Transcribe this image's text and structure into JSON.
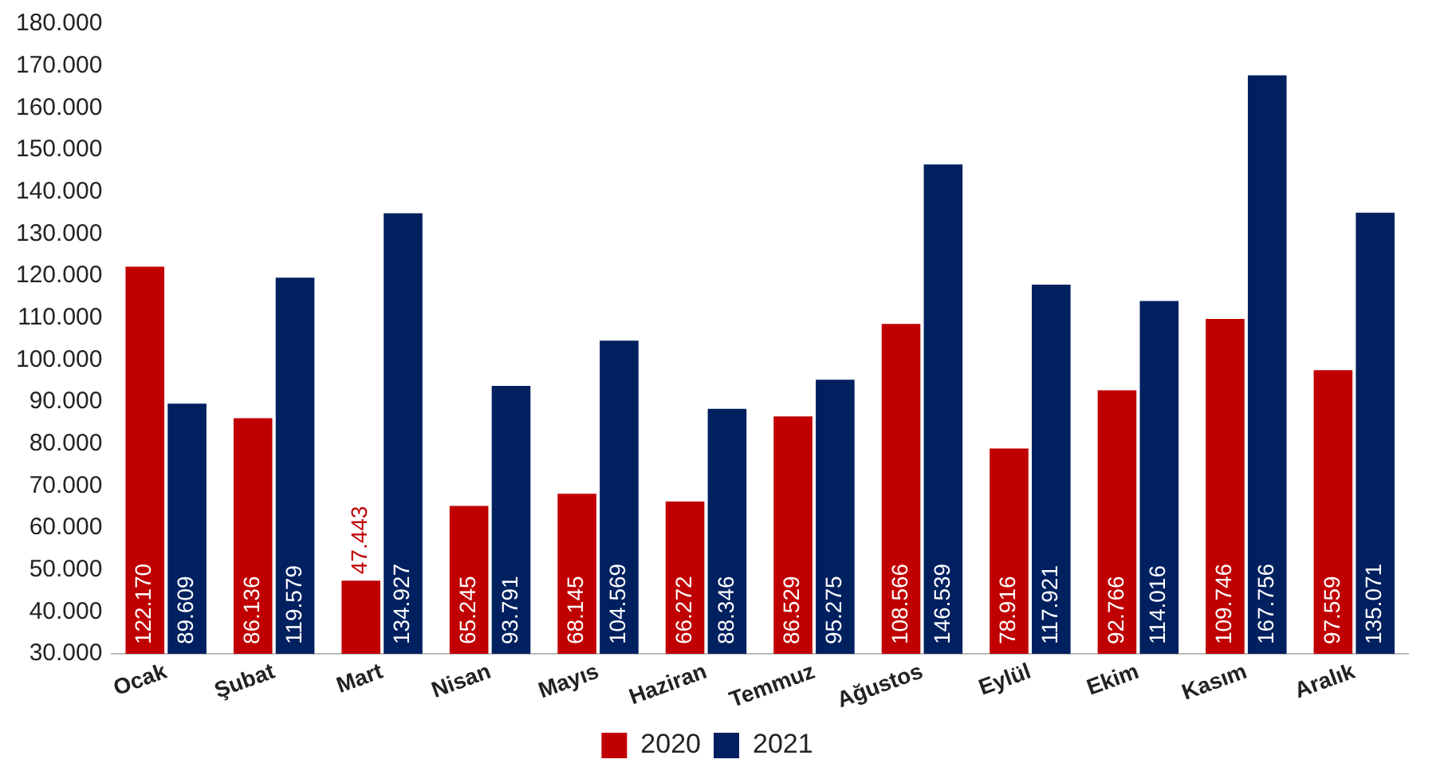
{
  "chart_data": {
    "type": "bar",
    "categories": [
      "Ocak",
      "Şubat",
      "Mart",
      "Nisan",
      "Mayıs",
      "Haziran",
      "Temmuz",
      "Ağustos",
      "Eylül",
      "Ekim",
      "Kasım",
      "Aralık"
    ],
    "series": [
      {
        "name": "2020",
        "color": "#c00000",
        "values": [
          122170,
          86136,
          47443,
          65245,
          68145,
          66272,
          86529,
          108566,
          78916,
          92766,
          109746,
          97559
        ],
        "value_labels": [
          "122.170",
          "86.136",
          "47.443",
          "65.245",
          "68.145",
          "66.272",
          "86.529",
          "108.566",
          "78.916",
          "92.766",
          "109.746",
          "97.559"
        ]
      },
      {
        "name": "2021",
        "color": "#002060",
        "values": [
          89609,
          119579,
          134927,
          93791,
          104569,
          88346,
          95275,
          146539,
          117921,
          114016,
          167756,
          135071
        ],
        "value_labels": [
          "89.609",
          "119.579",
          "134.927",
          "93.791",
          "104.569",
          "88.346",
          "95.275",
          "146.539",
          "117.921",
          "114.016",
          "167.756",
          "135.071"
        ]
      }
    ],
    "ylim": [
      30000,
      180000
    ],
    "yticks": [
      {
        "value": 30000,
        "label": "30.000"
      },
      {
        "value": 40000,
        "label": "40.000"
      },
      {
        "value": 50000,
        "label": "50.000"
      },
      {
        "value": 60000,
        "label": "60.000"
      },
      {
        "value": 70000,
        "label": "70.000"
      },
      {
        "value": 80000,
        "label": "80.000"
      },
      {
        "value": 90000,
        "label": "90.000"
      },
      {
        "value": 100000,
        "label": "100.000"
      },
      {
        "value": 110000,
        "label": "110.000"
      },
      {
        "value": 120000,
        "label": "120.000"
      },
      {
        "value": 130000,
        "label": "130.000"
      },
      {
        "value": 140000,
        "label": "140.000"
      },
      {
        "value": 150000,
        "label": "150.000"
      },
      {
        "value": 160000,
        "label": "160.000"
      },
      {
        "value": 170000,
        "label": "170.000"
      },
      {
        "value": 180000,
        "label": "180.000"
      }
    ],
    "legend": "bottom"
  }
}
